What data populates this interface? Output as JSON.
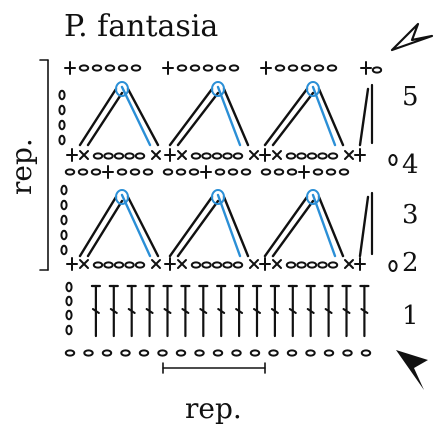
{
  "title": "P. fantasia",
  "repeat_label_bottom": "rep.",
  "repeat_label_side": "rep.",
  "row_numbers": [
    "1",
    "2",
    "3",
    "4",
    "5"
  ],
  "colors": {
    "ink": "#111111",
    "accent": "#2b8fd6"
  },
  "icons": {
    "start_arrow": "arrowhead-filled-icon",
    "end_arrow": "arrowhead-outline-icon"
  }
}
